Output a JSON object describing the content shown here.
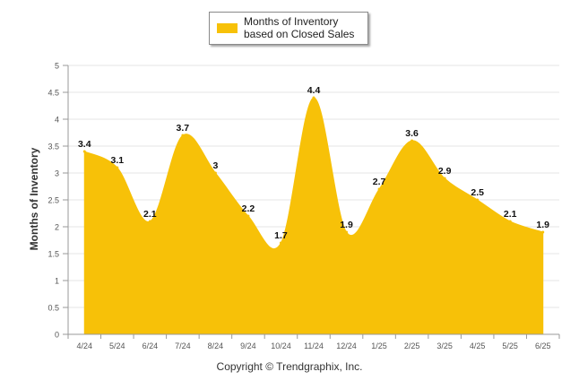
{
  "chart_data": {
    "type": "area",
    "categories": [
      "4/24",
      "5/24",
      "6/24",
      "7/24",
      "8/24",
      "9/24",
      "10/24",
      "11/24",
      "12/24",
      "1/25",
      "2/25",
      "3/25",
      "4/25",
      "5/25",
      "6/25"
    ],
    "series": [
      {
        "name": "Months of Inventory based on Closed Sales",
        "values": [
          3.4,
          3.1,
          2.1,
          3.7,
          3,
          2.2,
          1.7,
          4.4,
          1.9,
          2.7,
          3.6,
          2.9,
          2.5,
          2.1,
          1.9
        ],
        "labels": [
          "3.4",
          "3.1",
          "2.1",
          "3.7",
          "3",
          "2.2",
          "1.7",
          "4.4",
          "1.9",
          "2.7",
          "3.6",
          "2.9",
          "2.5",
          "2.1",
          "1.9"
        ],
        "color": "#F7C108"
      }
    ],
    "ylabel": "Months of Inventory",
    "ylim": [
      0,
      5
    ],
    "yticks": [
      "0",
      "0.5",
      "1",
      "1.5",
      "2",
      "2.5",
      "3",
      "3.5",
      "4",
      "4.5",
      "5"
    ],
    "grid": true,
    "legend_position": "top"
  },
  "footer": {
    "copyright": "Copyright © Trendgraphix, Inc."
  }
}
